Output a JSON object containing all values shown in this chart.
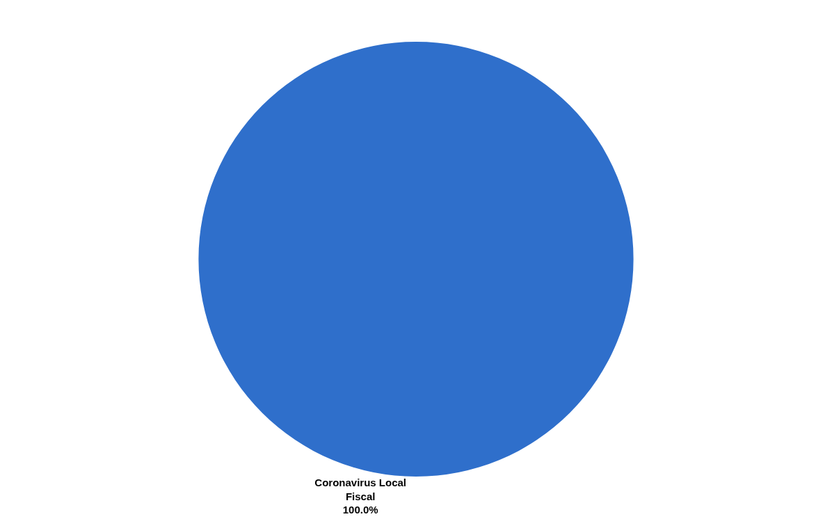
{
  "chart_data": {
    "type": "pie",
    "categories": [
      "Coronavirus Local Fiscal"
    ],
    "values": [
      100
    ],
    "colors": [
      "#2f6fcb"
    ],
    "value_labels": [
      "100.0%"
    ],
    "legend": false
  }
}
